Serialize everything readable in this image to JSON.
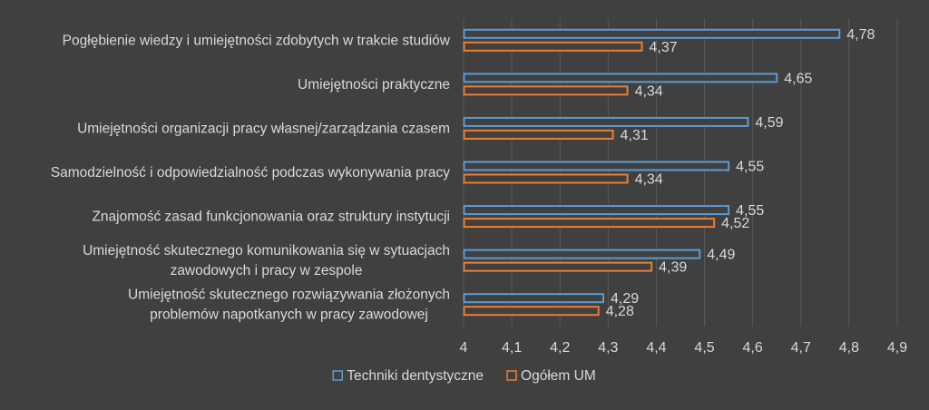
{
  "chart_data": {
    "type": "bar",
    "orientation": "horizontal",
    "categories": [
      [
        "Pogłębienie wiedzy i umiejętności zdobytych w trakcie studiów"
      ],
      [
        "Umiejętności praktyczne"
      ],
      [
        "Umiejętności organizacji pracy własnej/zarządzania czasem"
      ],
      [
        "Samodzielność i odpowiedzialność podczas wykonywania pracy"
      ],
      [
        "Znajomość zasad funkcjonowania oraz struktury instytucji"
      ],
      [
        "Umiejętność skutecznego komunikowania się w sytuacjach",
        "zawodowych i pracy w zespole"
      ],
      [
        "Umiejętność skutecznego rozwiązywania złożonych",
        "problemów napotkanych w pracy zawodowej"
      ]
    ],
    "series": [
      {
        "name": "Techniki dentystyczne",
        "color": "#5b9bd5",
        "values": [
          4.78,
          4.65,
          4.59,
          4.55,
          4.55,
          4.49,
          4.29
        ],
        "labels": [
          "4,78",
          "4,65",
          "4,59",
          "4,55",
          "4,55",
          "4,49",
          "4,29"
        ]
      },
      {
        "name": "Ogółem UM",
        "color": "#ed7d31",
        "values": [
          4.37,
          4.34,
          4.31,
          4.34,
          4.52,
          4.39,
          4.28
        ],
        "labels": [
          "4,37",
          "4,34",
          "4,31",
          "4,34",
          "4,52",
          "4,39",
          "4,28"
        ]
      }
    ],
    "xlim": [
      4,
      4.9
    ],
    "xticks": [
      4,
      4.1,
      4.2,
      4.3,
      4.4,
      4.5,
      4.6,
      4.7,
      4.8,
      4.9
    ],
    "xtick_labels": [
      "4",
      "4,1",
      "4,2",
      "4,3",
      "4,4",
      "4,5",
      "4,6",
      "4,7",
      "4,8",
      "4,9"
    ],
    "grid": "vertical",
    "legend": "bottom",
    "background_color": "#404040",
    "grid_color": "#595959",
    "text_color": "#d9d9d9"
  }
}
